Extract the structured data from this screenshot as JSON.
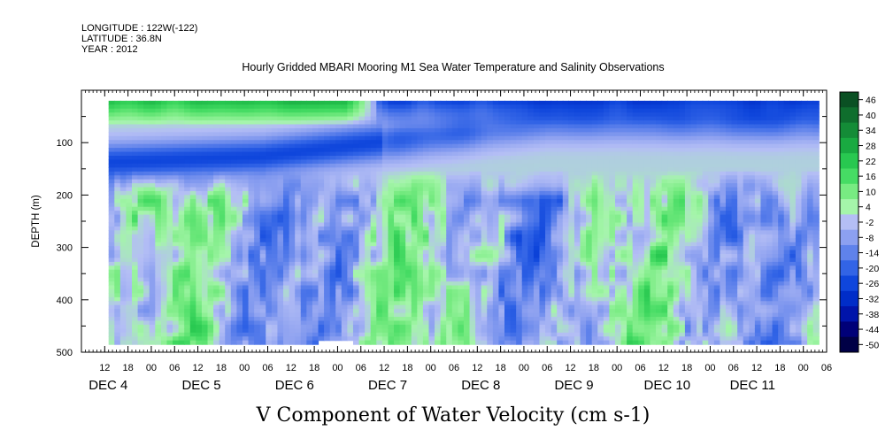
{
  "header": {
    "longitude": "LONGITUDE : 122W(-122)",
    "latitude": "LATITUDE : 36.8N",
    "year": "YEAR : 2012"
  },
  "chart_data": {
    "type": "heatmap",
    "title": "Hourly Gridded MBARI Mooring M1 Sea Water Temperature and Salinity Observations",
    "xlabel": "V Component of Water Velocity (cm s-1)",
    "ylabel": "DEPTH (m)",
    "y_axis": {
      "range": [
        500,
        0
      ],
      "inverted": true,
      "ticks": [
        100,
        200,
        300,
        400,
        500
      ],
      "data_depth_range": [
        20,
        485
      ]
    },
    "x_axis": {
      "unit": "hour",
      "range_hours_from_dec4_00": [
        -18,
        174
      ],
      "hour_ticks": [
        "12",
        "18",
        "00",
        "06",
        "12",
        "18",
        "00",
        "06",
        "12",
        "18",
        "00",
        "06",
        "12",
        "18",
        "00",
        "06",
        "12",
        "18",
        "00",
        "06",
        "12",
        "18",
        "00",
        "06",
        "12",
        "18",
        "00",
        "06",
        "12",
        "18",
        "00",
        "06"
      ],
      "day_labels": [
        {
          "label": "DEC  4",
          "hour": -12
        },
        {
          "label": "DEC  5",
          "hour": 12
        },
        {
          "label": "DEC  6",
          "hour": 36
        },
        {
          "label": "DEC  7",
          "hour": 60
        },
        {
          "label": "DEC  8",
          "hour": 84
        },
        {
          "label": "DEC  9",
          "hour": 108
        },
        {
          "label": "DEC 10",
          "hour": 132
        },
        {
          "label": "DEC 11",
          "hour": 154
        }
      ],
      "data_hour_range": [
        -11,
        171
      ]
    },
    "colorbar": {
      "levels": [
        -50,
        -44,
        -38,
        -32,
        -26,
        -20,
        -14,
        -8,
        -2,
        4,
        10,
        16,
        22,
        28,
        34,
        40,
        46
      ],
      "labels": [
        "46",
        "40",
        "34",
        "28",
        "22",
        "16",
        "10",
        "4",
        "-2",
        "-8",
        "-14",
        "-20",
        "-26",
        "-32",
        "-38",
        "-44",
        "-50"
      ]
    },
    "pattern": {
      "surface_layer": "positive 15-30 at 20-60 m from Dec 4 to Dec 7, then strong negative (-20 to -30) near surface from Dec 7 onward",
      "subsurface_jet": "negative -20 to -30 at 100-180 m early Dec 4-6",
      "deep_layer": "alternating bands of -8 to -14 and +4 to +22 extending 200-480 m"
    }
  }
}
